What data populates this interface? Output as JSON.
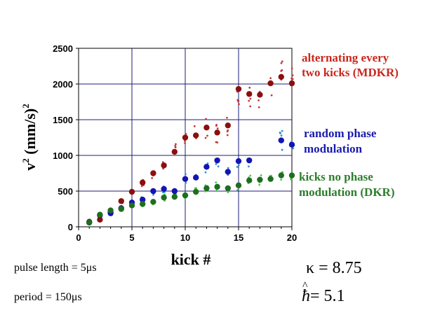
{
  "chart_data": {
    "type": "scatter",
    "title": "",
    "xlabel": "kick #",
    "ylabel_main": "v",
    "ylabel_sup1": "2",
    "ylabel_units": " (mm/s)",
    "ylabel_sup2": "2",
    "xlim": [
      0,
      20
    ],
    "ylim": [
      0,
      2500
    ],
    "xticks": [
      0,
      5,
      10,
      15,
      20
    ],
    "yticks": [
      0,
      500,
      1000,
      1500,
      2000,
      2500
    ],
    "grid": true,
    "series": [
      {
        "name": "alternating every two kicks (MDKR)",
        "label_lines": [
          "alternating every",
          "two kicks (MDKR)"
        ],
        "color": "#8b0f0f",
        "scatter_color": "#c23b3b",
        "x": [
          1,
          2,
          3,
          4,
          5,
          6,
          7,
          8,
          9,
          10,
          11,
          12,
          13,
          14,
          15,
          16,
          17,
          18,
          19,
          20
        ],
        "y": [
          70,
          100,
          200,
          360,
          490,
          620,
          750,
          860,
          1050,
          1250,
          1280,
          1390,
          1320,
          1420,
          1930,
          1860,
          1850,
          2010,
          2100,
          2010
        ]
      },
      {
        "name": "random phase modulation",
        "label_lines": [
          "random phase",
          "modulation"
        ],
        "color": "#1414b4",
        "scatter_color": "#2e8fd8",
        "x": [
          1,
          2,
          3,
          4,
          5,
          6,
          7,
          8,
          9,
          10,
          11,
          12,
          13,
          14,
          15,
          16,
          17,
          18,
          19,
          20
        ],
        "y": [
          60,
          160,
          190,
          260,
          340,
          380,
          500,
          530,
          500,
          670,
          690,
          840,
          930,
          770,
          920,
          930,
          null,
          null,
          1210,
          1150
        ]
      },
      {
        "name": "kicks no phase modulation (DKR)",
        "label_lines": [
          "kicks no phase",
          "modulation (DKR)"
        ],
        "color": "#1e6e1e",
        "scatter_color": "#4cc44c",
        "x": [
          1,
          2,
          3,
          4,
          5,
          6,
          7,
          8,
          9,
          10,
          11,
          12,
          13,
          14,
          15,
          16,
          17,
          18,
          19,
          20
        ],
        "y": [
          60,
          170,
          230,
          250,
          300,
          320,
          350,
          410,
          420,
          440,
          490,
          540,
          560,
          540,
          580,
          650,
          660,
          670,
          720,
          720
        ]
      }
    ]
  },
  "notes": {
    "pulse_length": "pulse length = 5μs",
    "period": "period = 150μs"
  },
  "params": {
    "kappa": "κ = 8.75",
    "hbar_symbol": "ħ",
    "hbar_hat": "^",
    "hbar_value": "= 5.1"
  }
}
